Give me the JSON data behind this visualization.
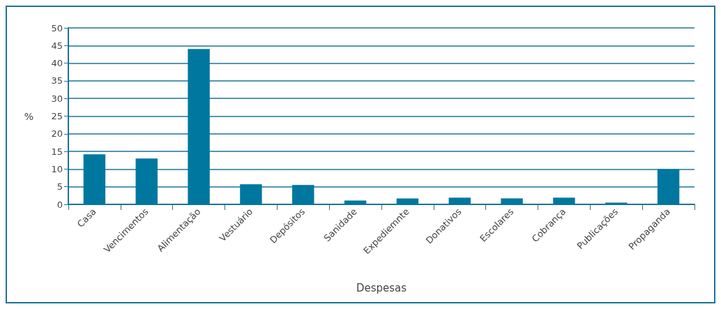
{
  "chart_data": {
    "type": "bar",
    "xlabel": "Despesas",
    "ylabel": "%",
    "categories": [
      "Casa",
      "Vencimentos",
      "Alimentação",
      "Vestuário",
      "Depósitos",
      "Sanidade",
      "Expediemnte",
      "Donativos",
      "Escolares",
      "Cobrança",
      "Publicações",
      "Propaganda"
    ],
    "values": [
      14.2,
      13.0,
      44.0,
      5.7,
      5.5,
      1.1,
      1.7,
      1.9,
      1.7,
      1.9,
      0.5,
      10.0
    ],
    "color": "#00779f",
    "ylim": [
      0,
      50
    ],
    "yticks": [
      0,
      5,
      10,
      15,
      20,
      25,
      30,
      35,
      40,
      45,
      50
    ],
    "grid": "y"
  }
}
